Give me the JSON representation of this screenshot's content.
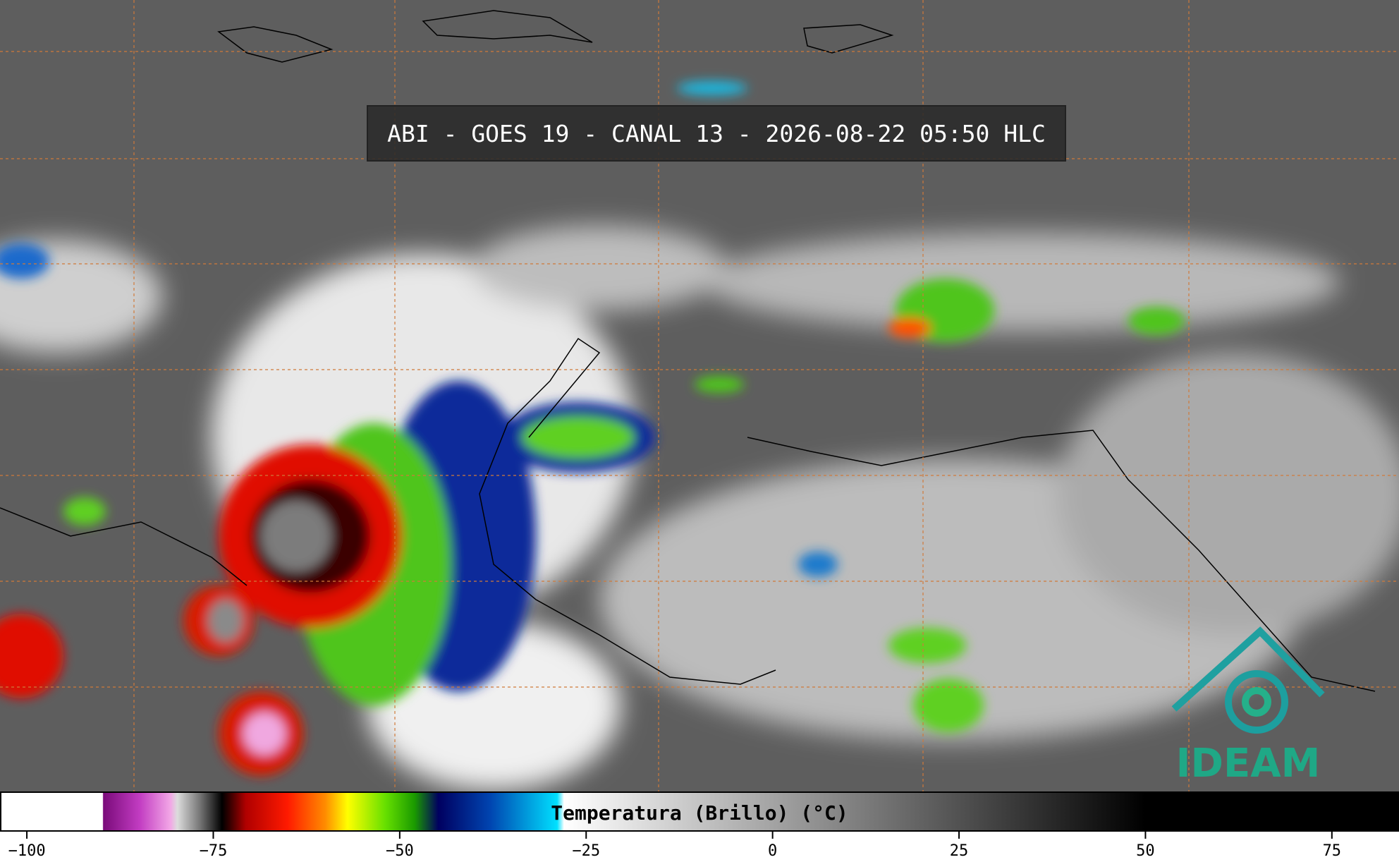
{
  "title": "ABI - GOES 19 - CANAL 13 - 2026-08-22 05:50 HLC",
  "colorbar": {
    "label": "Temperatura (Brillo) (°C)",
    "lim": [
      -103.6,
      84
    ],
    "ticks": [
      {
        "value": -100,
        "label": "−100"
      },
      {
        "value": -75,
        "label": "−75"
      },
      {
        "value": -50,
        "label": "−50"
      },
      {
        "value": -25,
        "label": "−25"
      },
      0,
      25,
      50,
      75
    ]
  },
  "logo": {
    "text": "IDEAM"
  }
}
